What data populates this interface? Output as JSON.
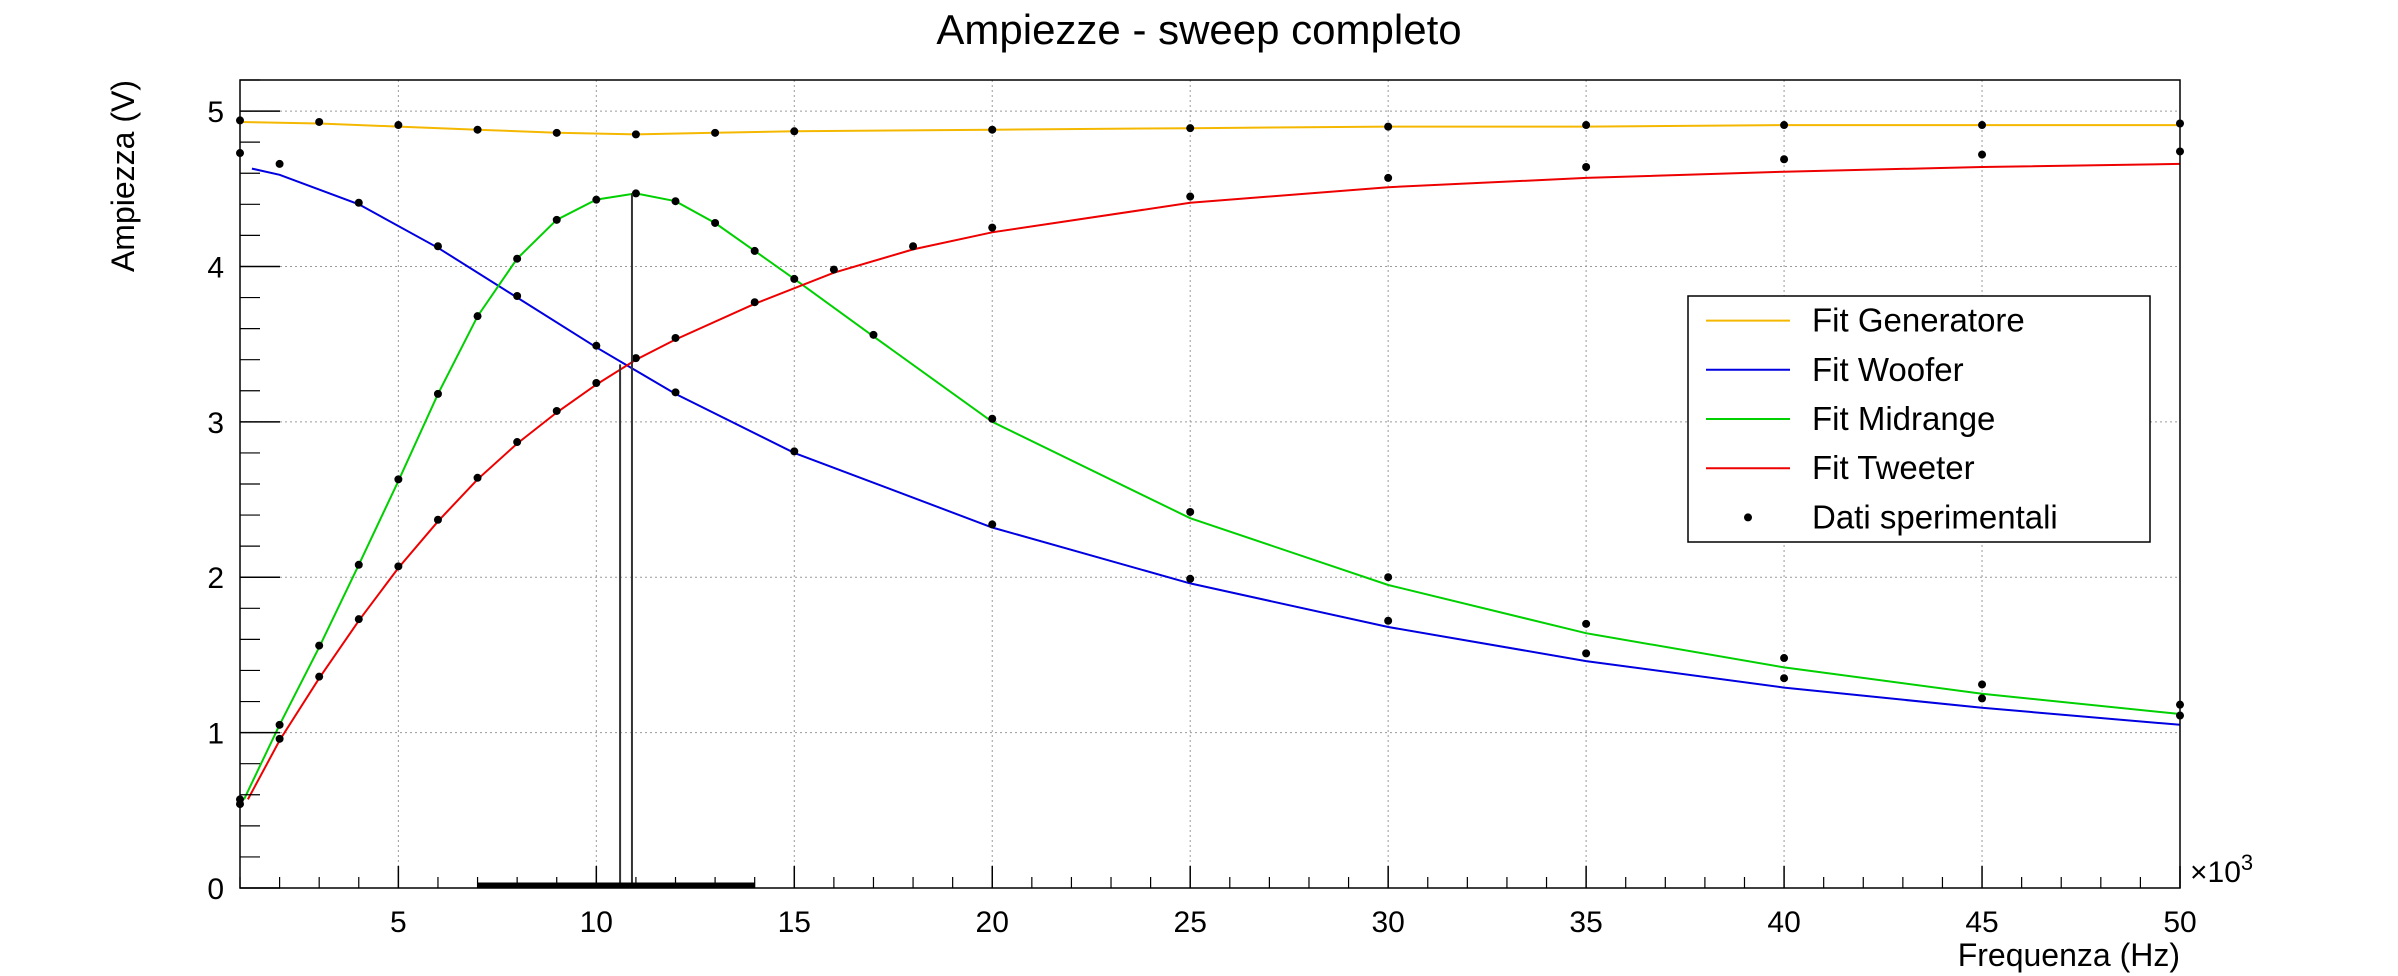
{
  "chart_data": {
    "type": "line",
    "title": "Ampiezze - sweep completo",
    "xlabel": "Frequenza (Hz)",
    "ylabel": "Ampiezza (V)",
    "x_multiplier_label": "×10",
    "x_multiplier_exp": "3",
    "xlim": [
      1,
      50
    ],
    "ylim": [
      0,
      5.2
    ],
    "x_ticks": [
      5,
      10,
      15,
      20,
      25,
      30,
      35,
      40,
      45,
      50
    ],
    "x_tick_labels": [
      "5",
      "10",
      "15",
      "20",
      "25",
      "30",
      "35",
      "40",
      "45",
      "50"
    ],
    "y_ticks": [
      0,
      1,
      2,
      3,
      4,
      5
    ],
    "y_tick_labels": [
      "0",
      "1",
      "2",
      "3",
      "4",
      "5"
    ],
    "grid": true,
    "legend_position": "right",
    "legend": [
      {
        "label": "Fit Generatore",
        "kind": "line",
        "color": "#f5b800"
      },
      {
        "label": "Fit Woofer",
        "kind": "line",
        "color": "#0000e0"
      },
      {
        "label": "Fit Midrange",
        "kind": "line",
        "color": "#00d000"
      },
      {
        "label": "Fit Tweeter",
        "kind": "line",
        "color": "#ee0000"
      },
      {
        "label": "Dati sperimentali",
        "kind": "marker",
        "color": "#000000"
      }
    ],
    "series": [
      {
        "kind": "fit",
        "color": "#f5b800",
        "x": [
          1,
          3,
          5,
          7,
          9,
          11,
          13,
          15,
          20,
          25,
          30,
          35,
          40,
          45,
          50
        ],
        "y": [
          4.93,
          4.92,
          4.9,
          4.88,
          4.86,
          4.85,
          4.86,
          4.87,
          4.88,
          4.89,
          4.9,
          4.9,
          4.91,
          4.91,
          4.91
        ]
      },
      {
        "kind": "fit",
        "color": "#0000e0",
        "x": [
          1.3,
          2,
          4,
          6,
          8,
          10,
          12,
          15,
          20,
          25,
          30,
          35,
          40,
          45,
          50
        ],
        "y": [
          4.63,
          4.59,
          4.4,
          4.12,
          3.8,
          3.48,
          3.18,
          2.8,
          2.32,
          1.96,
          1.68,
          1.46,
          1.29,
          1.16,
          1.05
        ]
      },
      {
        "kind": "fit",
        "color": "#00d000",
        "x": [
          1.1,
          2,
          3,
          4,
          5,
          6,
          7,
          8,
          9,
          10,
          11,
          12,
          13,
          14,
          15,
          17,
          20,
          25,
          30,
          35,
          40,
          45,
          50
        ],
        "y": [
          0.57,
          1.05,
          1.55,
          2.08,
          2.62,
          3.18,
          3.68,
          4.05,
          4.3,
          4.43,
          4.47,
          4.42,
          4.28,
          4.1,
          3.92,
          3.55,
          3.0,
          2.38,
          1.95,
          1.64,
          1.42,
          1.25,
          1.12
        ]
      },
      {
        "kind": "fit",
        "color": "#ee0000",
        "x": [
          1.2,
          2,
          3,
          4,
          5,
          6,
          7,
          8,
          9,
          10,
          11,
          12,
          14,
          16,
          18,
          20,
          25,
          30,
          35,
          40,
          45,
          50
        ],
        "y": [
          0.57,
          0.95,
          1.35,
          1.72,
          2.06,
          2.36,
          2.63,
          2.86,
          3.06,
          3.24,
          3.4,
          3.53,
          3.76,
          3.96,
          4.11,
          4.22,
          4.41,
          4.51,
          4.57,
          4.61,
          4.64,
          4.66
        ]
      },
      {
        "kind": "data",
        "color": "#000000",
        "x": [
          1,
          3,
          5,
          7,
          9,
          11,
          13,
          15,
          20,
          25,
          30,
          35,
          40,
          45,
          50
        ],
        "y": [
          4.94,
          4.93,
          4.91,
          4.88,
          4.86,
          4.85,
          4.86,
          4.87,
          4.88,
          4.89,
          4.9,
          4.91,
          4.91,
          4.91,
          4.92
        ]
      },
      {
        "kind": "data",
        "color": "#000000",
        "x": [
          1,
          2,
          4,
          6,
          8,
          10,
          12,
          15,
          20,
          25,
          30,
          35,
          40,
          45,
          50
        ],
        "y": [
          4.73,
          4.66,
          4.41,
          4.13,
          3.81,
          3.49,
          3.19,
          2.81,
          2.34,
          1.99,
          1.72,
          1.51,
          1.35,
          1.22,
          1.11
        ]
      },
      {
        "kind": "data",
        "color": "#000000",
        "x": [
          1,
          2,
          3,
          4,
          5,
          6,
          7,
          8,
          9,
          10,
          11,
          12,
          13,
          14,
          15,
          17,
          20,
          25,
          30,
          35,
          40,
          45,
          50
        ],
        "y": [
          0.54,
          1.05,
          1.56,
          2.08,
          2.63,
          3.18,
          3.68,
          4.05,
          4.3,
          4.43,
          4.47,
          4.42,
          4.28,
          4.1,
          3.92,
          3.56,
          3.02,
          2.42,
          2.0,
          1.7,
          1.48,
          1.31,
          1.18
        ]
      },
      {
        "kind": "data",
        "color": "#000000",
        "x": [
          1,
          2,
          3,
          4,
          5,
          6,
          7,
          8,
          9,
          10,
          11,
          12,
          14,
          16,
          18,
          20,
          25,
          30,
          35,
          40,
          45,
          50
        ],
        "y": [
          0.57,
          0.96,
          1.36,
          1.73,
          2.07,
          2.37,
          2.64,
          2.87,
          3.07,
          3.25,
          3.41,
          3.54,
          3.77,
          3.98,
          4.13,
          4.25,
          4.45,
          4.57,
          4.64,
          4.69,
          4.72,
          4.74
        ]
      }
    ],
    "vertical_markers": [
      {
        "x": 10.6,
        "y_top": 3.37
      },
      {
        "x": 10.9,
        "y_top": 4.47
      }
    ],
    "x_error_bar": {
      "x_from": 7.0,
      "x_to": 14.0,
      "y": 0
    }
  }
}
